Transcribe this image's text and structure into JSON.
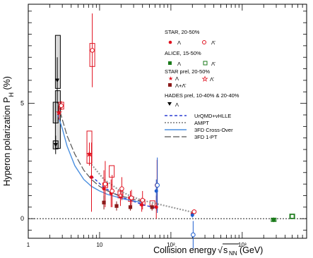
{
  "chart_data": {
    "type": "scatter",
    "title": "",
    "xlabel_prefix": "Collision energy ",
    "xlabel_sqrt": "s",
    "xlabel_sub": "NN",
    "xlabel_suffix": " (GeV)",
    "ylabel": "Hyperon polarization P",
    "ylabel_sub": "H",
    "ylabel_suffix": " (%)",
    "x_scale": "log",
    "xlim": [
      1,
      8000
    ],
    "ylim": [
      -0.85,
      9.3
    ],
    "x_ticks": [
      {
        "v": 1,
        "label": "1"
      },
      {
        "v": 10,
        "label": "10"
      },
      {
        "v": 100,
        "label": "10²"
      },
      {
        "v": 1000,
        "label": "10³"
      }
    ],
    "y_ticks": [
      {
        "v": 0,
        "label": "0"
      },
      {
        "v": 5,
        "label": "5"
      }
    ],
    "zero_line": true,
    "colors": {
      "star": "#e0101e",
      "alice": "#1a7a1a",
      "hades": "#000000",
      "brown": "#8b1a1a",
      "blue_point": "#1f5fd0",
      "urqmd": "#2b3fd4",
      "ampt": "#999999",
      "fd_cross": "#4a8fe0",
      "fd_1pt": "#555555"
    },
    "legend": {
      "star_title": "STAR, 20-50%",
      "star_lambda": "Λ",
      "star_antilambda": "Λ̄",
      "alice_title": "ALICE, 15-50%",
      "alice_lambda": "Λ",
      "alice_antilambda": "Λ̄",
      "starprel_title": "STAR prel, 20-50%",
      "starprel_lambda": "Λ",
      "starprel_lambda_sum": "Λ+Λ̄",
      "starprel_antilambda": "Λ̄",
      "hades_title": "HADES prel, 10-40% & 20-40%",
      "hades_lambda": "Λ",
      "model_urqmd": "UrQMD+vHLLE",
      "model_ampt": "AMPT",
      "model_3fd_cross": "3FD Cross-Over",
      "model_3fd_1pt": "3FD 1-PT"
    },
    "series": [
      {
        "name": "STAR Λ",
        "marker": "filled-circle",
        "color": "star",
        "points": [
          {
            "x": 7.7,
            "y": 1.8,
            "err": 1.5
          },
          {
            "x": 11.5,
            "y": 1.3,
            "err": 0.8
          },
          {
            "x": 14.5,
            "y": 1.1,
            "err": 0.6
          },
          {
            "x": 19.6,
            "y": 0.95,
            "err": 0.4
          },
          {
            "x": 27,
            "y": 0.9,
            "err": 0.3
          },
          {
            "x": 39,
            "y": 0.6,
            "err": 0.3
          },
          {
            "x": 62.4,
            "y": 0.5,
            "err": 0.5
          },
          {
            "x": 200,
            "y": 0.2,
            "err": 0.08
          }
        ]
      },
      {
        "name": "STAR Λ̄",
        "marker": "open-circle",
        "color": "star",
        "points": [
          {
            "x": 2.9,
            "y": 4.9,
            "err": 0.2
          },
          {
            "x": 7.9,
            "y": 7.3,
            "err": 1.6
          },
          {
            "x": 12,
            "y": 1.5,
            "err": 1.0
          },
          {
            "x": 15,
            "y": 1.2,
            "err": 0.7
          },
          {
            "x": 20.5,
            "y": 1.3,
            "err": 0.5
          },
          {
            "x": 28,
            "y": 0.9,
            "err": 0.35
          },
          {
            "x": 40,
            "y": 0.8,
            "err": 0.4
          },
          {
            "x": 64,
            "y": 1.45,
            "err": 1.1
          },
          {
            "x": 212,
            "y": 0.3,
            "err": 0.1
          }
        ]
      },
      {
        "name": "ALICE Λ",
        "marker": "filled-square",
        "color": "alice",
        "points": [
          {
            "x": 2760,
            "y": -0.05,
            "err": 0.1
          }
        ]
      },
      {
        "name": "ALICE Λ̄",
        "marker": "open-square",
        "color": "alice",
        "points": [
          {
            "x": 5020,
            "y": 0.1,
            "err": 0.1
          }
        ]
      },
      {
        "name": "STAR prel Λ",
        "marker": "filled-star",
        "color": "star",
        "points": [
          {
            "x": 2.7,
            "y": 4.6,
            "err": 0.3
          },
          {
            "x": 7.2,
            "y": 2.8,
            "err": 0.5
          }
        ]
      },
      {
        "name": "STAR prel Λ+Λ̄",
        "marker": "filled-square",
        "color": "brown",
        "points": [
          {
            "x": 11.5,
            "y": 0.7,
            "err": 0.3
          },
          {
            "x": 17.3,
            "y": 0.55,
            "err": 0.2
          },
          {
            "x": 27,
            "y": 0.5,
            "err": 0.15
          },
          {
            "x": 54.4,
            "y": 0.5,
            "err": 0.15
          }
        ]
      },
      {
        "name": "STAR prel Λ̄",
        "marker": "open-star",
        "color": "star",
        "points": [
          {
            "x": 19.6,
            "y": 1.0,
            "err": 0.3
          }
        ]
      },
      {
        "name": "HADES prel Λ",
        "marker": "filled-triangle-down",
        "color": "hades",
        "points": [
          {
            "x": 2.42,
            "y": 3.2,
            "err": 0.4
          },
          {
            "x": 2.55,
            "y": 6.0,
            "err": 1.0
          }
        ]
      },
      {
        "name": "STAR blue Λ",
        "marker": "filled-circle",
        "color": "blue_point",
        "points": [
          {
            "x": 62.4,
            "y": 1.2,
            "err": 0.5
          },
          {
            "x": 200,
            "y": 0.15,
            "err": 0.1
          }
        ]
      },
      {
        "name": "STAR blue Λ̄",
        "marker": "open-circle",
        "color": "blue_point",
        "points": [
          {
            "x": 64.5,
            "y": 1.45,
            "err": 1.2
          },
          {
            "x": 205,
            "y": -0.7,
            "err": 0.6
          }
        ]
      }
    ],
    "models": [
      {
        "name": "UrQMD+vHLLE",
        "style": "dashed",
        "color": "urqmd",
        "points": [
          [
            7.7,
            1.85
          ],
          [
            11.5,
            1.35
          ],
          [
            19.6,
            0.95
          ],
          [
            27,
            0.8
          ],
          [
            39,
            0.62
          ],
          [
            62.4,
            0.45
          ]
        ]
      },
      {
        "name": "AMPT",
        "style": "dotted",
        "color": "ampt",
        "points": [
          [
            7.7,
            2.35
          ],
          [
            11.5,
            1.7
          ],
          [
            19.6,
            1.2
          ],
          [
            27,
            0.98
          ],
          [
            39,
            0.8
          ],
          [
            62.4,
            0.65
          ],
          [
            200,
            0.28
          ]
        ]
      },
      {
        "name": "3FD Cross-Over",
        "style": "solid",
        "color": "fd_cross",
        "points": [
          [
            2.6,
            4.5
          ],
          [
            3.0,
            3.9
          ],
          [
            3.5,
            3.15
          ],
          [
            4.5,
            2.3
          ],
          [
            6,
            1.7
          ],
          [
            7.7,
            1.4
          ],
          [
            10,
            1.2
          ],
          [
            13,
            1.05
          ],
          [
            17,
            0.95
          ],
          [
            22,
            0.85
          ],
          [
            27,
            0.8
          ],
          [
            39,
            0.7
          ]
        ]
      },
      {
        "name": "3FD 1-PT",
        "style": "longdash",
        "color": "fd_1pt",
        "points": [
          [
            2.6,
            5.0
          ],
          [
            3.0,
            4.3
          ],
          [
            3.5,
            3.6
          ],
          [
            4.5,
            2.8
          ],
          [
            6,
            2.1
          ],
          [
            7.7,
            1.7
          ],
          [
            10,
            1.4
          ],
          [
            13,
            1.2
          ],
          [
            17,
            1.05
          ],
          [
            22,
            0.95
          ],
          [
            27,
            0.88
          ],
          [
            39,
            0.75
          ]
        ]
      }
    ],
    "boxes": [
      {
        "x": 2.42,
        "y": 3.2,
        "h": 0.35,
        "color": "hades"
      },
      {
        "x": 2.42,
        "y": 4.6,
        "h": 0.9,
        "color": "hades"
      },
      {
        "x": 2.6,
        "y": 6.8,
        "h": 2.3,
        "color": "hades"
      },
      {
        "x": 2.6,
        "y": 4.3,
        "h": 2.5,
        "color": "hades"
      },
      {
        "x": 2.9,
        "y": 4.9,
        "h": 0.3,
        "color": "star"
      },
      {
        "x": 7.2,
        "y": 3.1,
        "h": 1.4,
        "color": "star"
      },
      {
        "x": 7.9,
        "y": 7.1,
        "h": 1.0,
        "color": "star"
      },
      {
        "x": 14.8,
        "y": 2.05,
        "h": 0.5,
        "color": "star"
      },
      {
        "x": 12,
        "y": 1.45,
        "h": 0.2,
        "color": "star"
      },
      {
        "x": 19.6,
        "y": 1.05,
        "h": 0.3,
        "color": "star"
      },
      {
        "x": 27.5,
        "y": 0.85,
        "h": 0.2,
        "color": "star"
      },
      {
        "x": 40,
        "y": 0.7,
        "h": 0.25,
        "color": "star"
      },
      {
        "x": 55,
        "y": 0.65,
        "h": 0.25,
        "color": "star"
      },
      {
        "x": 5020,
        "y": 0.1,
        "h": 0.2,
        "color": "alice"
      },
      {
        "x": 2760,
        "y": -0.05,
        "h": 0.15,
        "color": "alice"
      }
    ]
  }
}
